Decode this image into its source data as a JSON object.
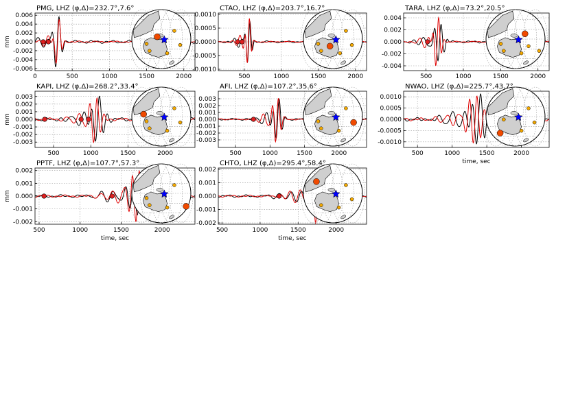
{
  "colors": {
    "observed": "#000000",
    "synthetic": "#e00000",
    "land": "#cfcfcf",
    "event": "#0000ff",
    "station_small": "#f4a900",
    "station_big": "#f04a00"
  },
  "chart_data": [
    {
      "type": "line",
      "title": "PMG, LHZ (φ,Δ)=232.7°,7.6°",
      "ylabel": "mm",
      "xlabel": "",
      "xlim": [
        0,
        2150
      ],
      "ylim": [
        -0.0065,
        0.0065
      ],
      "xticks": [
        "0",
        "500",
        "1000",
        "1500",
        "2000"
      ],
      "yticks": [
        "0.006",
        "0.004",
        "0.002",
        "0.000",
        "-0.002",
        "-0.004",
        "-0.006"
      ],
      "series": [
        {
          "center": 300,
          "amp": 0.0058,
          "width": 70,
          "period": 95,
          "noise": 0.00035
        },
        {
          "center": 305,
          "amp": 0.0055,
          "width": 60,
          "period": 90,
          "noise": 0.0002
        }
      ],
      "markers": [
        110,
        180
      ],
      "globe": {
        "big": [
          0.43,
          0.46
        ],
        "small": [
          [
            0.72,
            0.36
          ],
          [
            0.6,
            0.74
          ],
          [
            0.82,
            0.6
          ],
          [
            0.25,
            0.58
          ],
          [
            0.3,
            0.7
          ]
        ]
      }
    },
    {
      "type": "line",
      "title": "CTAO, LHZ (φ,Δ)=203.7°,16.7°",
      "ylabel": "",
      "xlabel": "",
      "xlim": [
        150,
        2150
      ],
      "ylim": [
        -0.00105,
        0.00105
      ],
      "xticks": [
        "500",
        "1000",
        "1500",
        "2000"
      ],
      "yticks": [
        "0.0010",
        "0.0005",
        "0.0000",
        "-0.0005",
        "-0.0010"
      ],
      "series": [
        {
          "center": 560,
          "amp": 0.00075,
          "width": 55,
          "period": 70,
          "noise": 4e-05
        },
        {
          "center": 555,
          "amp": 0.00095,
          "width": 45,
          "period": 65,
          "noise": 2e-05
        }
      ],
      "markers": [
        410,
        470
      ],
      "globe": {
        "big": [
          0.45,
          0.62
        ],
        "small": [
          [
            0.72,
            0.36
          ],
          [
            0.62,
            0.74
          ],
          [
            0.82,
            0.6
          ],
          [
            0.25,
            0.58
          ],
          [
            0.3,
            0.7
          ]
        ]
      }
    },
    {
      "type": "line",
      "title": "TARA, LHZ (φ,Δ)=73.2°,20.5°",
      "ylabel": "",
      "xlabel": "",
      "xlim": [
        200,
        2150
      ],
      "ylim": [
        -0.0048,
        0.0048
      ],
      "xticks": [
        "500",
        "1000",
        "1500",
        "2000"
      ],
      "yticks": [
        "0.004",
        "0.002",
        "0.000",
        "-0.002",
        "-0.004"
      ],
      "series": [
        {
          "center": 680,
          "amp": 0.0034,
          "width": 80,
          "period": 90,
          "noise": 0.0002
        },
        {
          "center": 650,
          "amp": 0.0042,
          "width": 65,
          "period": 80,
          "noise": 0.0001
        }
      ],
      "markers": [
        520
      ],
      "globe": {
        "big": [
          0.66,
          0.41
        ],
        "small": [
          [
            0.72,
            0.62
          ],
          [
            0.6,
            0.74
          ],
          [
            0.9,
            0.7
          ],
          [
            0.25,
            0.58
          ],
          [
            0.3,
            0.7
          ]
        ]
      }
    },
    {
      "type": "line",
      "title": "KAPI, LHZ (φ,Δ)=268.2°,33.4°",
      "ylabel": "mm",
      "xlabel": "",
      "xlim": [
        250,
        2400
      ],
      "ylim": [
        -0.0037,
        0.0037
      ],
      "xticks": [
        "500",
        "1000",
        "1500",
        "2000"
      ],
      "yticks": [
        "0.003",
        "0.002",
        "0.001",
        "0.000",
        "-0.001",
        "-0.002",
        "-0.003"
      ],
      "series": [
        {
          "center": 1090,
          "amp": 0.0029,
          "width": 110,
          "period": 110,
          "noise": 0.00025
        },
        {
          "center": 1060,
          "amp": 0.0032,
          "width": 90,
          "period": 100,
          "noise": 0.0002
        }
      ],
      "markers": [
        380,
        870,
        970
      ],
      "globe": {
        "big": [
          0.2,
          0.46
        ],
        "small": [
          [
            0.72,
            0.36
          ],
          [
            0.6,
            0.74
          ],
          [
            0.82,
            0.6
          ],
          [
            0.25,
            0.58
          ],
          [
            0.3,
            0.7
          ]
        ]
      }
    },
    {
      "type": "line",
      "title": "AFI, LHZ (φ,Δ)=107.2°,35.6°",
      "ylabel": "",
      "xlabel": "",
      "xlim": [
        250,
        2400
      ],
      "ylim": [
        -0.0041,
        0.0041
      ],
      "xticks": [
        "500",
        "1000",
        "1500",
        "2000"
      ],
      "yticks": [
        "0.003",
        "0.002",
        "0.001",
        "0.000",
        "-0.001",
        "-0.002",
        "-0.003"
      ],
      "series": [
        {
          "center": 1110,
          "amp": 0.0032,
          "width": 80,
          "period": 95,
          "noise": 0.00015
        },
        {
          "center": 1100,
          "amp": 0.0035,
          "width": 70,
          "period": 90,
          "noise": 0.0001
        }
      ],
      "markers": [
        760
      ],
      "globe": {
        "big": [
          0.85,
          0.6
        ],
        "small": [
          [
            0.72,
            0.36
          ],
          [
            0.6,
            0.74
          ],
          [
            0.25,
            0.58
          ],
          [
            0.3,
            0.7
          ]
        ]
      }
    },
    {
      "type": "line",
      "title": "NWAO, LHZ (φ,Δ)=225.7°,43.7°",
      "ylabel": "",
      "xlabel": "time, sec",
      "xlim": [
        300,
        2400
      ],
      "ylim": [
        -0.00125,
        0.00125
      ],
      "xticks": [
        "500",
        "1000",
        "1500",
        "2000"
      ],
      "yticks": [
        "0.0010",
        "0.0005",
        "0.0000",
        "-0.0005",
        "-0.0010"
      ],
      "series": [
        {
          "center": 1380,
          "amp": 0.0011,
          "width": 160,
          "period": 120,
          "noise": 9e-05
        },
        {
          "center": 1330,
          "amp": 0.00115,
          "width": 130,
          "period": 110,
          "noise": 7e-05
        }
      ],
      "markers": [],
      "globe": {
        "big": [
          0.24,
          0.78
        ],
        "small": [
          [
            0.72,
            0.36
          ],
          [
            0.6,
            0.74
          ],
          [
            0.82,
            0.6
          ],
          [
            0.3,
            0.55
          ]
        ]
      }
    },
    {
      "type": "line",
      "title": "PPTF, LHZ (φ,Δ)=107.7°,57.3°",
      "ylabel": "mm",
      "xlabel": "time, sec",
      "xlim": [
        450,
        2400
      ],
      "ylim": [
        -0.0022,
        0.0022
      ],
      "xticks": [
        "500",
        "1000",
        "1500",
        "2000"
      ],
      "yticks": [
        "0.002",
        "0.001",
        "0.000",
        "-0.001",
        "-0.002"
      ],
      "series": [
        {
          "center": 1720,
          "amp": 0.0017,
          "width": 140,
          "period": 95,
          "noise": 0.00012
        },
        {
          "center": 1700,
          "amp": 0.0021,
          "width": 110,
          "period": 85,
          "noise": 0.0001
        }
      ],
      "markers": [
        560,
        1390
      ],
      "globe": {
        "big": [
          0.92,
          0.72
        ],
        "small": [
          [
            0.72,
            0.36
          ],
          [
            0.6,
            0.74
          ],
          [
            0.25,
            0.58
          ],
          [
            0.3,
            0.7
          ]
        ]
      }
    },
    {
      "type": "line",
      "title": "CHTO, LHZ (φ,Δ)=295.4°,58.4°",
      "ylabel": "",
      "xlabel": "time, sec",
      "xlim": [
        450,
        2400
      ],
      "ylim": [
        -0.0021,
        0.0021
      ],
      "xticks": [
        "500",
        "1000",
        "1500",
        "2000"
      ],
      "yticks": [
        "0.002",
        "0.001",
        "0.000",
        "-0.001",
        "-0.002"
      ],
      "series": [
        {
          "center": 1780,
          "amp": 0.0015,
          "width": 140,
          "period": 95,
          "noise": 0.0001
        },
        {
          "center": 1750,
          "amp": 0.0019,
          "width": 110,
          "period": 85,
          "noise": 8e-05
        }
      ],
      "markers": [
        1250
      ],
      "globe": {
        "big": [
          0.22,
          0.3
        ],
        "small": [
          [
            0.72,
            0.36
          ],
          [
            0.6,
            0.74
          ],
          [
            0.82,
            0.6
          ],
          [
            0.3,
            0.7
          ]
        ]
      }
    }
  ]
}
